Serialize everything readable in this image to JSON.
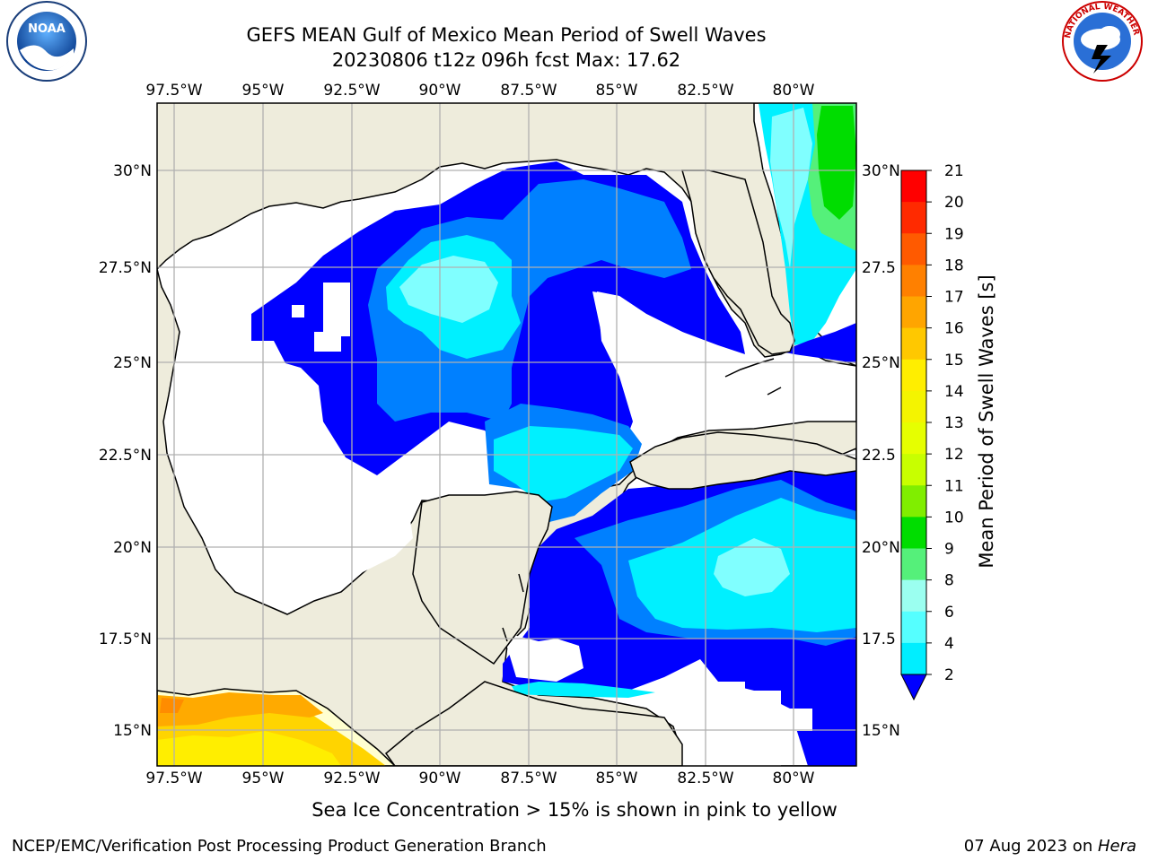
{
  "header": {
    "title_line1": "GEFS MEAN Gulf of Mexico Mean Period of Swell Waves",
    "title_line2": "20230806 t12z 096h fcst   Max: 17.62"
  },
  "map": {
    "lon_labels": [
      "97.5°W",
      "95°W",
      "92.5°W",
      "90°W",
      "87.5°W",
      "85°W",
      "82.5°W",
      "80°W"
    ],
    "lat_labels_left": [
      "30°N",
      "27.5°N",
      "25°N",
      "22.5°N",
      "20°N",
      "17.5°N",
      "15°N"
    ],
    "lat_labels_right": [
      "30°N",
      "27.5",
      "25°N",
      "22.5",
      "20°N",
      "17.5",
      "15°N"
    ],
    "colors": {
      "land": "#eeecdc",
      "ocean": "#ffffff",
      "grid": "#b0b0b0"
    }
  },
  "colorbar": {
    "label": "Mean Period of Swell Waves [s]",
    "ticks": [
      "21",
      "20",
      "19",
      "18",
      "17",
      "16",
      "15",
      "14",
      "13",
      "12",
      "11",
      "10",
      "9",
      "8",
      "6",
      "4",
      "2"
    ],
    "colors": [
      "#ff0000",
      "#ff2a00",
      "#ff5a00",
      "#ff8000",
      "#ffa500",
      "#ffc800",
      "#ffee00",
      "#f4f400",
      "#e6ff00",
      "#c8ff00",
      "#80ee00",
      "#00dd00",
      "#55f07a",
      "#9bfff0",
      "#55ffff",
      "#00eeff",
      "#0080ff",
      "#0000ff"
    ]
  },
  "logos": {
    "left_text": "NOAA",
    "right_text": "NATIONAL WEATHER SERVICE"
  },
  "footer": {
    "note": "Sea Ice Concentration > 15% is shown in pink to yellow",
    "credit": "NCEP/EMC/Verification Post Processing Product Generation Branch",
    "date_prefix": "07 Aug 2023 on ",
    "date_machine": "Hera"
  }
}
